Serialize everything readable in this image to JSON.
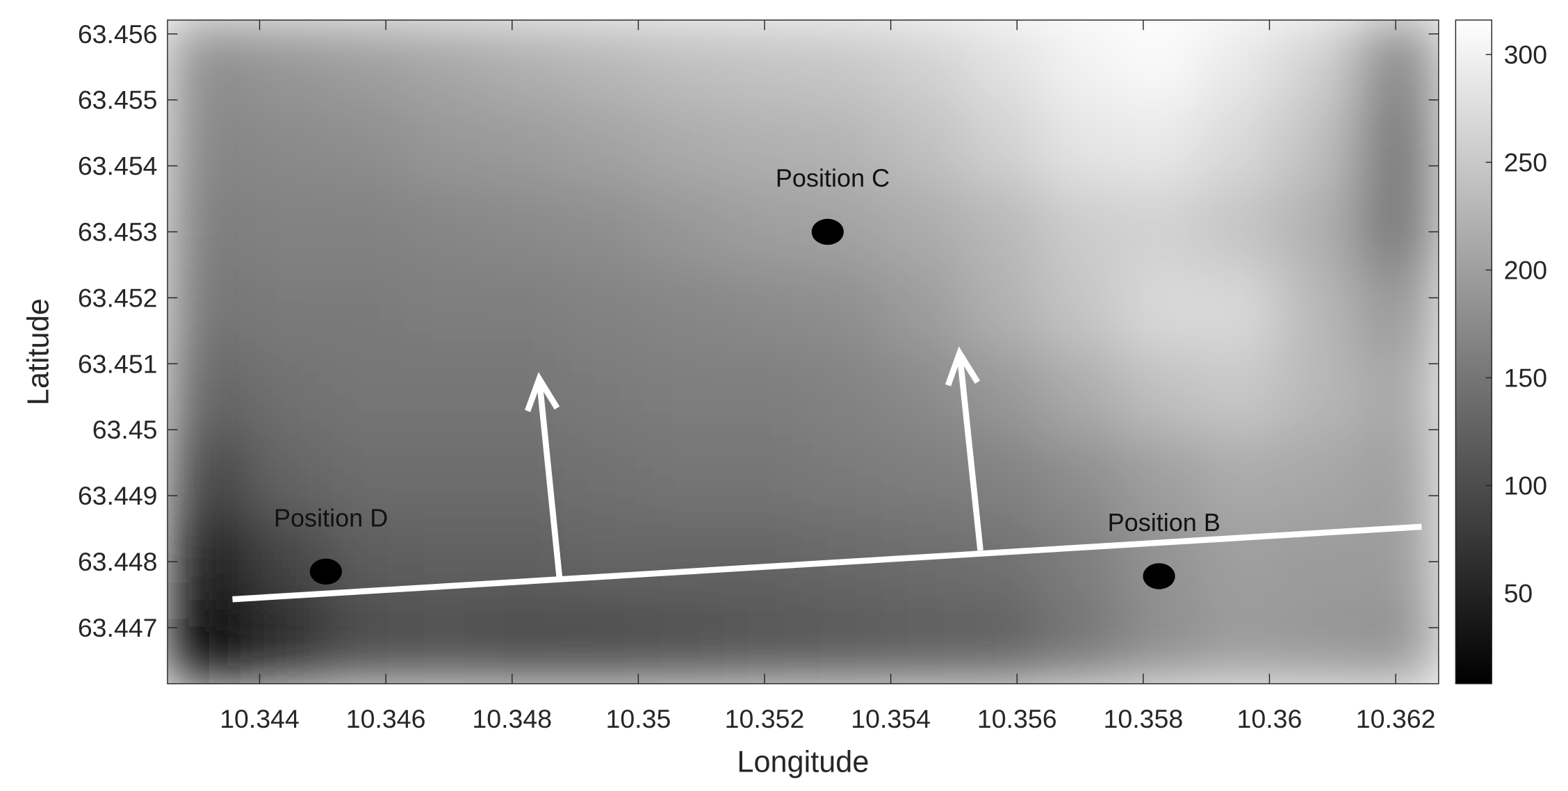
{
  "chart_data": {
    "type": "heatmap",
    "xlabel": "Longitude",
    "ylabel": "Latitude",
    "xlim": [
      10.34254,
      10.36268
    ],
    "ylim": [
      63.44615,
      63.45621
    ],
    "xticks": [
      10.344,
      10.346,
      10.348,
      10.35,
      10.352,
      10.354,
      10.356,
      10.358,
      10.36,
      10.362
    ],
    "yticks": [
      63.447,
      63.448,
      63.449,
      63.45,
      63.451,
      63.452,
      63.453,
      63.454,
      63.455,
      63.456
    ],
    "clim": [
      8,
      316
    ],
    "cticks": [
      50,
      100,
      150,
      200,
      250,
      300
    ],
    "colormap": "gray",
    "values": [
      [
        180,
        190,
        200,
        210,
        220,
        230,
        240,
        245,
        250,
        260,
        280,
        300,
        310,
        290,
        260,
        170
      ],
      [
        170,
        175,
        180,
        190,
        195,
        205,
        215,
        220,
        225,
        240,
        260,
        285,
        290,
        270,
        240,
        150
      ],
      [
        160,
        165,
        165,
        170,
        175,
        180,
        190,
        200,
        205,
        215,
        230,
        255,
        260,
        245,
        220,
        150
      ],
      [
        150,
        155,
        155,
        160,
        160,
        165,
        170,
        175,
        180,
        195,
        220,
        245,
        270,
        270,
        230,
        190
      ],
      [
        130,
        145,
        150,
        150,
        150,
        155,
        160,
        160,
        165,
        175,
        190,
        215,
        240,
        250,
        230,
        210
      ],
      [
        90,
        130,
        140,
        140,
        140,
        145,
        150,
        150,
        155,
        160,
        165,
        180,
        200,
        215,
        210,
        200
      ],
      [
        40,
        90,
        120,
        125,
        125,
        130,
        130,
        130,
        135,
        140,
        145,
        160,
        185,
        200,
        195,
        195
      ],
      [
        10,
        60,
        100,
        105,
        100,
        100,
        105,
        110,
        115,
        120,
        125,
        150,
        180,
        195,
        190,
        185
      ]
    ],
    "points": [
      {
        "label": "Position C",
        "x": 10.353,
        "y": 63.453
      },
      {
        "label": "Position D",
        "x": 10.34505,
        "y": 63.44785
      },
      {
        "label": "Position B",
        "x": 10.35825,
        "y": 63.44778
      }
    ],
    "line": {
      "x": [
        10.34357,
        10.36241
      ],
      "y": [
        63.44743,
        63.44853
      ]
    },
    "arrows": [
      {
        "x": [
          10.34875,
          10.34843
        ],
        "y": [
          63.44776,
          63.45077
        ]
      },
      {
        "x": [
          10.35542,
          10.35509
        ],
        "y": [
          63.44817,
          63.45116
        ]
      }
    ]
  }
}
